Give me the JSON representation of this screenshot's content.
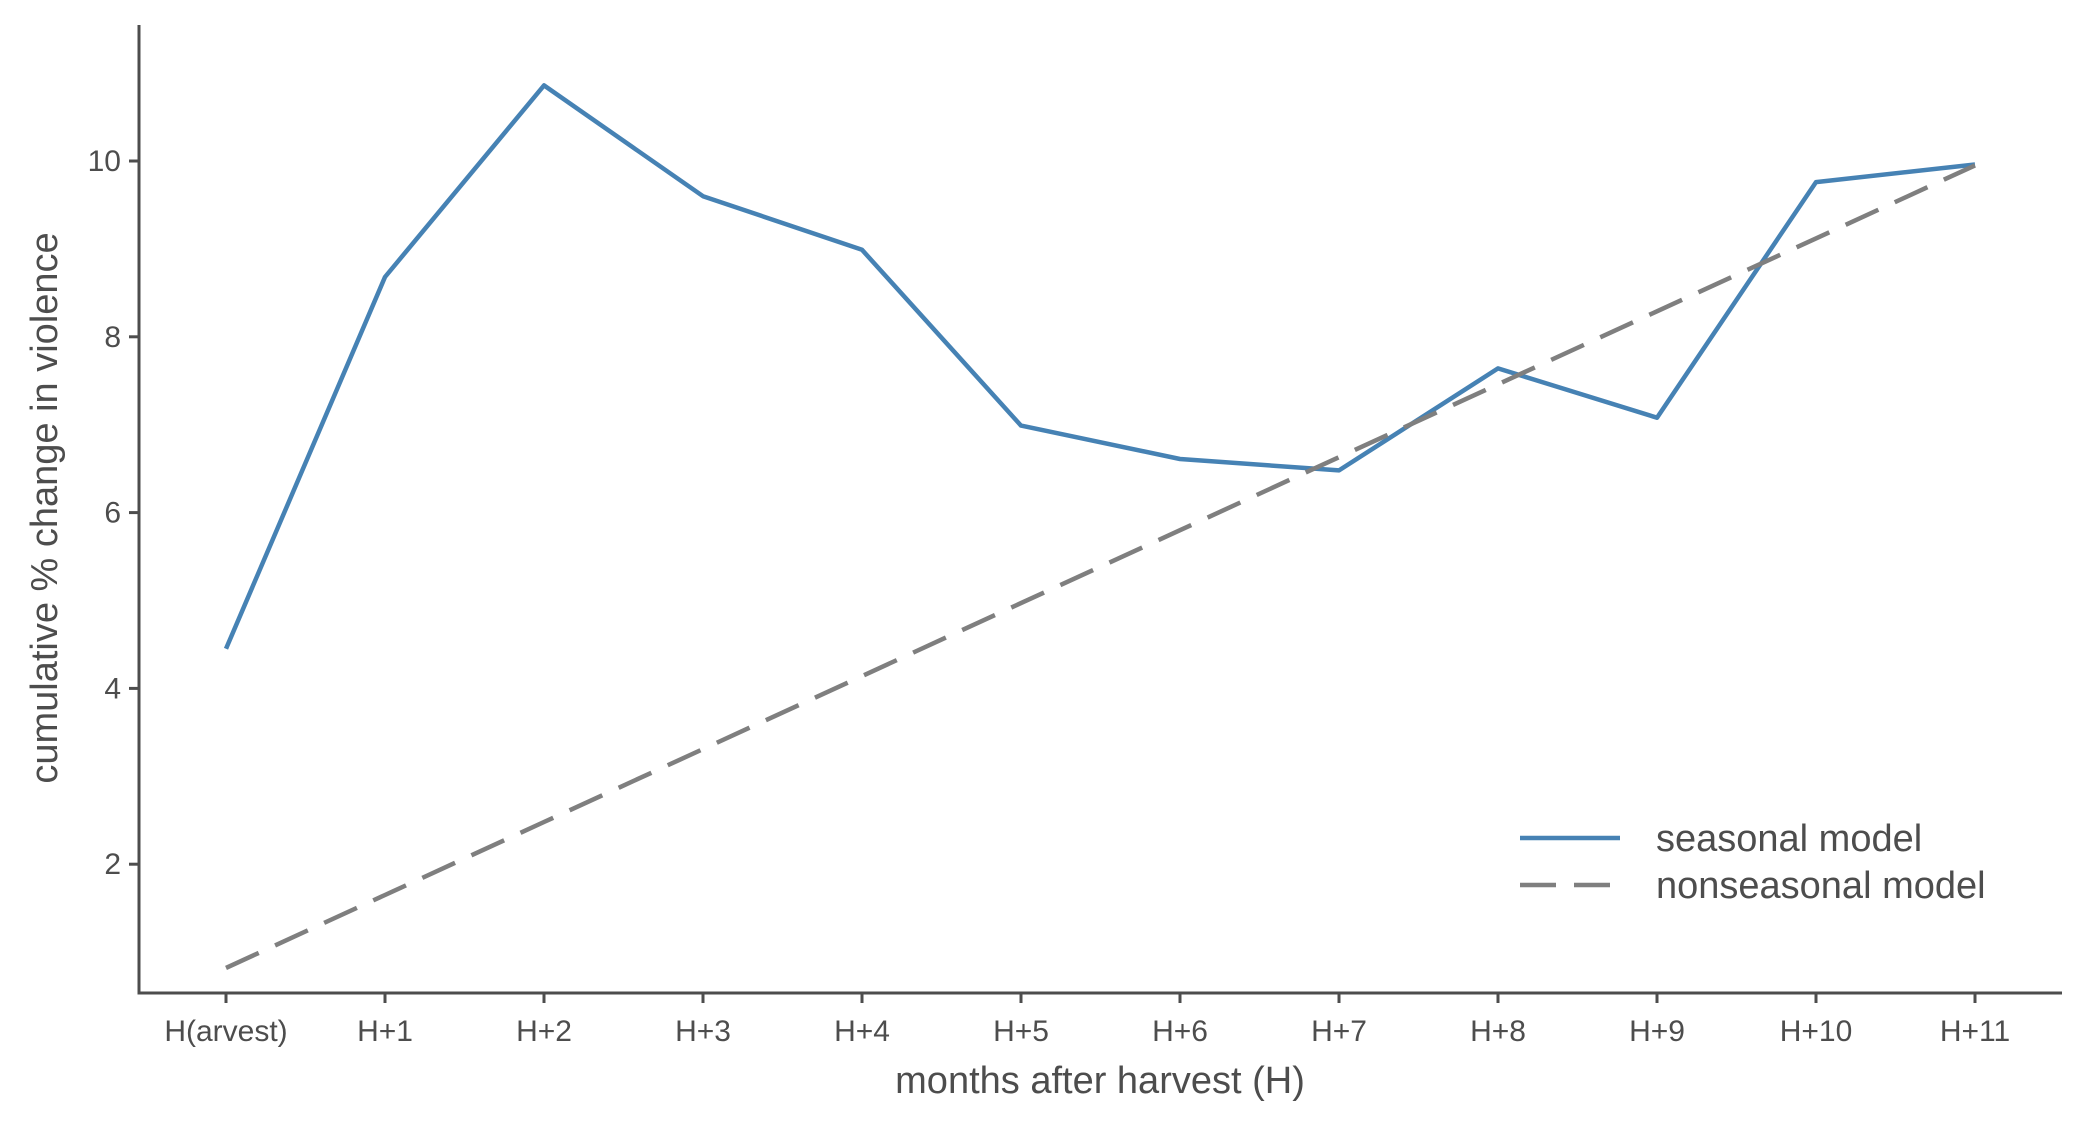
{
  "chart_data": {
    "type": "line",
    "xlabel": "months after harvest (H)",
    "ylabel": "cumulative % change in violence",
    "categories": [
      "H(arvest)",
      "H+1",
      "H+2",
      "H+3",
      "H+4",
      "H+5",
      "H+6",
      "H+7",
      "H+8",
      "H+9",
      "H+10",
      "H+11"
    ],
    "ylim": [
      0.4,
      11.4
    ],
    "yticks": [
      2,
      4,
      6,
      8,
      10
    ],
    "grid": false,
    "legend_position": "bottom-right",
    "series": [
      {
        "name": "seasonal model",
        "color": "#4682b4",
        "line_style": "solid",
        "values": [
          4.45,
          8.68,
          10.86,
          9.6,
          8.99,
          6.99,
          6.61,
          6.48,
          7.64,
          7.08,
          9.76,
          9.96
        ]
      },
      {
        "name": "nonseasonal model",
        "color": "#7f7f7f",
        "line_style": "dashed",
        "values": [
          0.82,
          1.65,
          2.48,
          3.31,
          4.14,
          4.97,
          5.8,
          6.63,
          7.46,
          8.29,
          9.12,
          9.95
        ]
      }
    ]
  }
}
